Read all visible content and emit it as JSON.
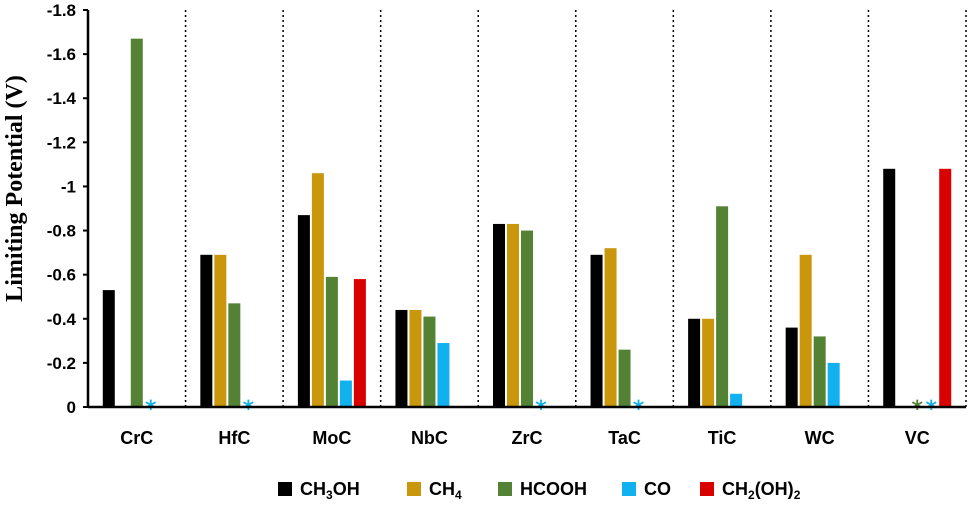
{
  "chart_data": {
    "type": "bar",
    "ylabel": "Limiting Potential  (V)",
    "y_axis_inverted": true,
    "ylim": [
      0,
      -1.8
    ],
    "yticks": [
      0,
      -0.2,
      -0.4,
      -0.6,
      -0.8,
      -1,
      -1.2,
      -1.4,
      -1.6,
      -1.8
    ],
    "ytick_labels": [
      "0",
      "-0.2",
      "-0.4",
      "-0.6",
      "-0.8",
      "-1",
      "-1.2",
      "-1.4",
      "-1.6",
      "-1.8"
    ],
    "grid": false,
    "category_separators": "dotted vertical lines",
    "legend_placement": "bottom",
    "categories": [
      "CrC",
      "HfC",
      "MoC",
      "NbC",
      "ZrC",
      "TaC",
      "TiC",
      "WC",
      "VC"
    ],
    "series": [
      {
        "name": "CH3OH",
        "label_main": "CH",
        "label_sub": "3",
        "label_tail": "OH",
        "color": "#000000",
        "values": [
          -0.53,
          -0.69,
          -0.87,
          -0.44,
          -0.83,
          -0.69,
          -0.4,
          -0.36,
          -1.08
        ]
      },
      {
        "name": "CH4",
        "label_main": "CH",
        "label_sub": "4",
        "label_tail": "",
        "color": "#C9960C",
        "values": [
          null,
          -0.69,
          -1.06,
          -0.44,
          -0.83,
          -0.72,
          -0.4,
          -0.69,
          null
        ]
      },
      {
        "name": "HCOOH",
        "label_main": "HCOOH",
        "label_sub": "",
        "label_tail": "",
        "color": "#548235",
        "values": [
          -1.67,
          -0.47,
          -0.59,
          -0.41,
          -0.8,
          -0.26,
          -0.91,
          -0.32,
          null
        ]
      },
      {
        "name": "CO",
        "label_main": "CO",
        "label_sub": "",
        "label_tail": "",
        "color": "#11B0EF",
        "values": [
          null,
          null,
          -0.12,
          -0.29,
          null,
          null,
          -0.06,
          -0.2,
          null
        ]
      },
      {
        "name": "CH2(OH)2",
        "label_main": "CH",
        "label_sub": "2",
        "label_tail": "(OH)",
        "label_sub2": "2",
        "color": "#D90000",
        "values": [
          null,
          null,
          -0.58,
          null,
          null,
          null,
          null,
          null,
          -1.08
        ]
      }
    ],
    "annotations": [
      {
        "category": "CrC",
        "series": "CO",
        "text": "*"
      },
      {
        "category": "HfC",
        "series": "CO",
        "text": "*"
      },
      {
        "category": "ZrC",
        "series": "CO",
        "text": "*"
      },
      {
        "category": "TaC",
        "series": "CO",
        "text": "*"
      },
      {
        "category": "VC",
        "series": "HCOOH",
        "text": "*"
      },
      {
        "category": "VC",
        "series": "CO",
        "text": "*"
      }
    ]
  }
}
